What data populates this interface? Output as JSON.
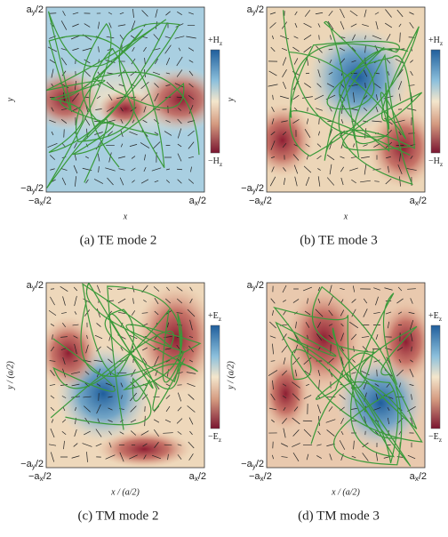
{
  "panels": [
    {
      "caption": "(a)  TE mode 2",
      "x_label": "x",
      "y_label": "y",
      "y_max": {
        "main": "a",
        "sub": "y",
        "tail": "/2"
      },
      "y_min": {
        "main": "−a",
        "sub": "y",
        "tail": "/2"
      },
      "x_min": {
        "main": "−a",
        "sub": "x",
        "tail": "/2"
      },
      "x_max": {
        "main": "a",
        "sub": "x",
        "tail": "/2"
      },
      "colorbar_max": {
        "main": "+H",
        "sub": "z"
      },
      "colorbar_min": {
        "main": "−H",
        "sub": "z"
      }
    },
    {
      "caption": "(b)  TE mode 3",
      "x_label": "x",
      "y_label": "y",
      "y_max": {
        "main": "a",
        "sub": "y",
        "tail": "/2"
      },
      "y_min": {
        "main": "−a",
        "sub": "y",
        "tail": "/2"
      },
      "x_min": {
        "main": "−a",
        "sub": "x",
        "tail": "/2"
      },
      "x_max": {
        "main": "a",
        "sub": "x",
        "tail": "/2"
      },
      "colorbar_max": {
        "main": "+H",
        "sub": "z"
      },
      "colorbar_min": {
        "main": "−H",
        "sub": "z"
      }
    },
    {
      "caption": "(c)  TM mode 2",
      "x_label": "x / (a/2)",
      "y_label": "y / (a/2)",
      "y_max": {
        "main": "a",
        "sub": "y",
        "tail": "/2"
      },
      "y_min": {
        "main": "−a",
        "sub": "y",
        "tail": "/2"
      },
      "x_min": {
        "main": "−a",
        "sub": "x",
        "tail": "/2"
      },
      "x_max": {
        "main": "a",
        "sub": "x",
        "tail": "/2"
      },
      "colorbar_max": {
        "main": "+E",
        "sub": "z"
      },
      "colorbar_min": {
        "main": "−E",
        "sub": "z"
      }
    },
    {
      "caption": "(d)  TM mode 3",
      "x_label": "x / (a/2)",
      "y_label": "y / (a/2)",
      "y_max": {
        "main": "a",
        "sub": "y",
        "tail": "/2"
      },
      "y_min": {
        "main": "−a",
        "sub": "y",
        "tail": "/2"
      },
      "x_min": {
        "main": "−a",
        "sub": "x",
        "tail": "/2"
      },
      "x_max": {
        "main": "a",
        "sub": "x",
        "tail": "/2"
      },
      "colorbar_max": {
        "main": "+E",
        "sub": "z"
      },
      "colorbar_min": {
        "main": "−E",
        "sub": "z"
      }
    }
  ]
}
